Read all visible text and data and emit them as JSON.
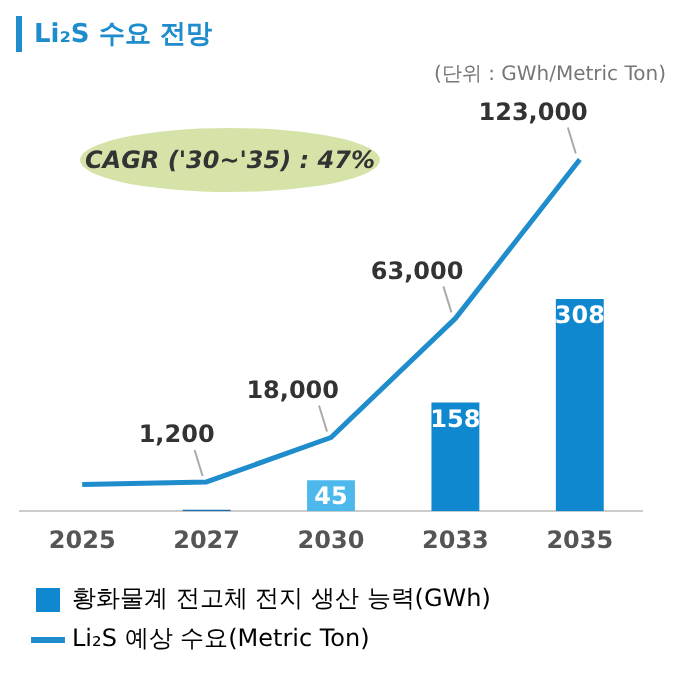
{
  "chart_data": {
    "type": "bar",
    "title": "Li₂S 수요 전망",
    "categories": [
      "2025",
      "2027",
      "2030",
      "2033",
      "2035"
    ],
    "series": [
      {
        "name": "황화물계 전고체 전지 생산 능력(GWh)",
        "color": "#0f88d0",
        "colors": [
          "#0f88d0",
          "#1a6fb0",
          "#4db8ec",
          "#0f88d0",
          "#0f88d0"
        ],
        "values": [
          0,
          2,
          45,
          158,
          308
        ],
        "value_labels": [
          null,
          null,
          "45",
          "158",
          "308"
        ]
      },
      {
        "type": "line",
        "axis": "y2",
        "name": "Li₂S 예상 수요(Metric Ton)",
        "color": "#1f8ccc",
        "values": [
          200,
          1200,
          18000,
          63000,
          123000
        ],
        "value_labels": [
          null,
          "1,200",
          "18,000",
          "63,000",
          "123,000"
        ]
      }
    ],
    "annotations": [
      "(단위 : GWh/Metric Ton)",
      "CAGR ('30~'35) : 47%"
    ],
    "legend": "bottom",
    "grid": false,
    "marker": "none"
  }
}
